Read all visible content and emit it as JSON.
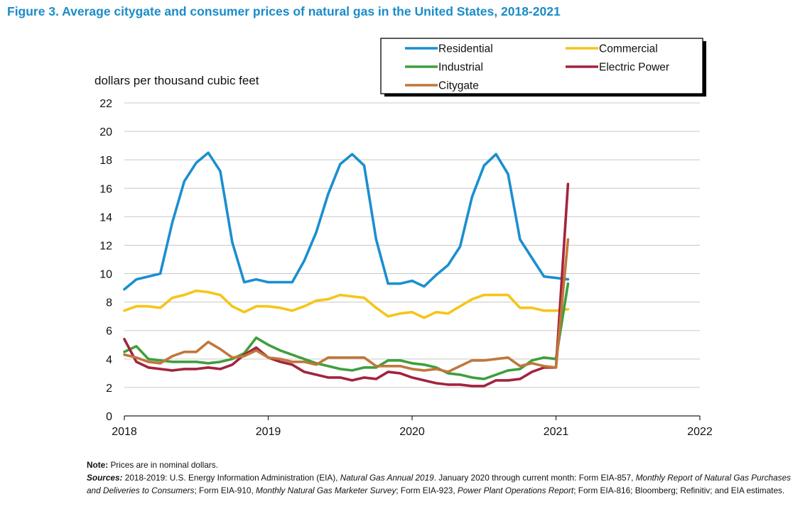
{
  "figure": {
    "title": "Figure 3.  Average citygate and consumer prices of natural gas in the United States, 2018-2021",
    "note_label": "Note:",
    "note_text": "Prices are in nominal dollars.",
    "sources_label": "Sources:",
    "sources_parts": [
      {
        "text": "2018-2019: U.S. Energy Information Administration (EIA), ",
        "italic": false
      },
      {
        "text": "Natural Gas Annual 2019",
        "italic": true
      },
      {
        "text": ". January 2020 through current month: Form EIA-857, ",
        "italic": false
      },
      {
        "text": "Monthly Report of Natural Gas Purchases and Deliveries to Consumers",
        "italic": true
      },
      {
        "text": "; Form EIA-910, ",
        "italic": false
      },
      {
        "text": "Monthly Natural Gas Marketer Survey",
        "italic": true
      },
      {
        "text": "; Form EIA-923, ",
        "italic": false
      },
      {
        "text": "Power Plant Operations Report",
        "italic": true
      },
      {
        "text": "; Form EIA-816; Bloomberg; Refinitiv; and EIA estimates.",
        "italic": false
      }
    ]
  },
  "colors": {
    "Residential": "#1a8fd0",
    "Commercial": "#f5c518",
    "Industrial": "#3f9e3f",
    "Electric Power": "#a3233e",
    "Citygate": "#c0773a"
  },
  "chart_data": {
    "type": "line",
    "ylabel": "dollars per thousand cubic feet",
    "xlim": [
      2018,
      2022
    ],
    "ylim": [
      0,
      22
    ],
    "xticks": [
      2018,
      2019,
      2020,
      2021,
      2022
    ],
    "yticks": [
      0,
      2,
      4,
      6,
      8,
      10,
      12,
      14,
      16,
      18,
      20,
      22
    ],
    "grid": true,
    "legend_position": "top-right",
    "x": [
      "2018-01",
      "2018-02",
      "2018-03",
      "2018-04",
      "2018-05",
      "2018-06",
      "2018-07",
      "2018-08",
      "2018-09",
      "2018-10",
      "2018-11",
      "2018-12",
      "2019-01",
      "2019-02",
      "2019-03",
      "2019-04",
      "2019-05",
      "2019-06",
      "2019-07",
      "2019-08",
      "2019-09",
      "2019-10",
      "2019-11",
      "2019-12",
      "2020-01",
      "2020-02",
      "2020-03",
      "2020-04",
      "2020-05",
      "2020-06",
      "2020-07",
      "2020-08",
      "2020-09",
      "2020-10",
      "2020-11",
      "2020-12",
      "2021-01",
      "2021-02"
    ],
    "series": [
      {
        "name": "Residential",
        "values": [
          8.9,
          9.6,
          9.8,
          10.0,
          13.6,
          16.5,
          17.8,
          18.5,
          17.2,
          12.2,
          9.4,
          9.6,
          9.4,
          9.4,
          9.4,
          10.9,
          12.9,
          15.6,
          17.7,
          18.4,
          17.6,
          12.4,
          9.3,
          9.3,
          9.5,
          9.1,
          9.9,
          10.6,
          11.9,
          15.4,
          17.6,
          18.4,
          17.0,
          12.4,
          11.1,
          9.8,
          9.7,
          9.6
        ]
      },
      {
        "name": "Commercial",
        "values": [
          7.4,
          7.7,
          7.7,
          7.6,
          8.3,
          8.5,
          8.8,
          8.7,
          8.5,
          7.7,
          7.3,
          7.7,
          7.7,
          7.6,
          7.4,
          7.7,
          8.1,
          8.2,
          8.5,
          8.4,
          8.3,
          7.6,
          7.0,
          7.2,
          7.3,
          6.9,
          7.3,
          7.2,
          7.7,
          8.2,
          8.5,
          8.5,
          8.5,
          7.6,
          7.6,
          7.4,
          7.4,
          7.5
        ]
      },
      {
        "name": "Industrial",
        "values": [
          4.5,
          4.9,
          4.0,
          3.9,
          3.8,
          3.8,
          3.8,
          3.7,
          3.8,
          4.0,
          4.4,
          5.5,
          5.0,
          4.6,
          4.3,
          4.0,
          3.7,
          3.5,
          3.3,
          3.2,
          3.4,
          3.4,
          3.9,
          3.9,
          3.7,
          3.6,
          3.4,
          3.0,
          2.9,
          2.7,
          2.6,
          2.9,
          3.2,
          3.3,
          3.9,
          4.1,
          4.0,
          9.3
        ]
      },
      {
        "name": "Electric Power",
        "values": [
          5.4,
          3.8,
          3.4,
          3.3,
          3.2,
          3.3,
          3.3,
          3.4,
          3.3,
          3.6,
          4.3,
          4.8,
          4.1,
          3.8,
          3.6,
          3.1,
          2.9,
          2.7,
          2.7,
          2.5,
          2.7,
          2.6,
          3.1,
          3.0,
          2.7,
          2.5,
          2.3,
          2.2,
          2.2,
          2.1,
          2.1,
          2.5,
          2.5,
          2.6,
          3.1,
          3.4,
          3.4,
          16.3
        ]
      },
      {
        "name": "Citygate",
        "values": [
          4.3,
          4.1,
          3.8,
          3.7,
          4.2,
          4.5,
          4.5,
          5.2,
          4.7,
          4.1,
          4.2,
          4.6,
          4.1,
          4.0,
          3.8,
          3.8,
          3.6,
          4.1,
          4.1,
          4.1,
          4.1,
          3.5,
          3.5,
          3.5,
          3.3,
          3.2,
          3.3,
          3.1,
          3.5,
          3.9,
          3.9,
          4.0,
          4.1,
          3.5,
          3.7,
          3.5,
          3.4,
          12.4
        ]
      }
    ],
    "legend_order": [
      "Residential",
      "Commercial",
      "Industrial",
      "Electric Power",
      "Citygate"
    ]
  }
}
